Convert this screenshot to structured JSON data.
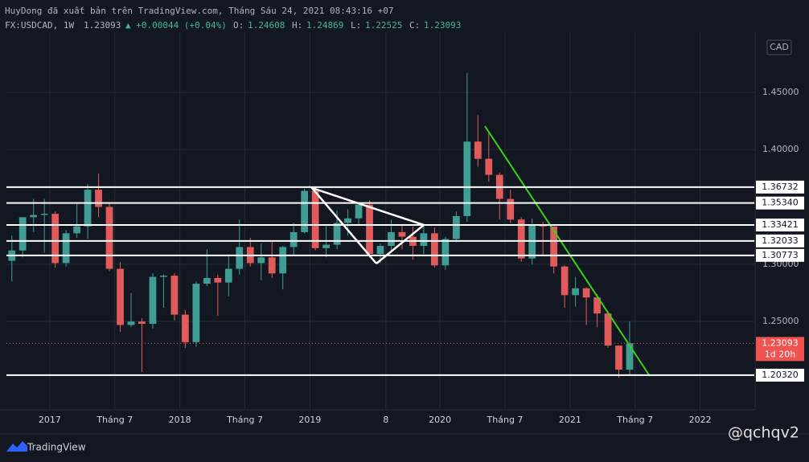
{
  "header": {
    "title": "HuyDong đã xuất bản trên TradingView.com, Tháng Sáu 24, 2021 08:43:16 +07",
    "symbol": "FX:USDCAD, 1W",
    "last": "1.23093",
    "change": "▲ +0.00044 (+0.04%)",
    "ohlc": [
      {
        "label": "O:",
        "value": "1.24608"
      },
      {
        "label": "H:",
        "value": "1.24869"
      },
      {
        "label": "L:",
        "value": "1.22525"
      },
      {
        "label": "C:",
        "value": "1.23093"
      }
    ]
  },
  "brand": "TradingView",
  "watermark": "@qchqv2",
  "chart_data": {
    "type": "candlestick",
    "currency": "CAD",
    "x": [
      "2016-09",
      "2016-10",
      "2016-11",
      "2016-12",
      "2017-01",
      "2017-02",
      "2017-03",
      "2017-04",
      "2017-05",
      "2017-06",
      "2017-07",
      "2017-08",
      "2017-09",
      "2017-10",
      "2017-11",
      "2017-12",
      "2018-01",
      "2018-02",
      "2018-03",
      "2018-04",
      "2018-05",
      "2018-06",
      "2018-07",
      "2018-08",
      "2018-09",
      "2018-10",
      "2018-11",
      "2018-12",
      "2019-01",
      "2019-02",
      "2019-03",
      "2019-04",
      "2019-05",
      "2019-06",
      "2019-07",
      "2019-08",
      "2019-09",
      "2019-10",
      "2019-11",
      "2019-12",
      "2020-01",
      "2020-02",
      "2020-03",
      "2020-04",
      "2020-05",
      "2020-06",
      "2020-07",
      "2020-08",
      "2020-09",
      "2020-10",
      "2020-11",
      "2020-12",
      "2021-01",
      "2021-02",
      "2021-03",
      "2021-04",
      "2021-05",
      "2021-06"
    ],
    "open": [
      1.303,
      1.312,
      1.341,
      1.343,
      1.344,
      1.301,
      1.327,
      1.333,
      1.365,
      1.35,
      1.296,
      1.247,
      1.25,
      1.248,
      1.289,
      1.29,
      1.256,
      1.232,
      1.283,
      1.288,
      1.284,
      1.296,
      1.315,
      1.301,
      1.306,
      1.292,
      1.315,
      1.328,
      1.364,
      1.314,
      1.317,
      1.336,
      1.34,
      1.352,
      1.309,
      1.316,
      1.328,
      1.324,
      1.316,
      1.327,
      1.299,
      1.322,
      1.342,
      1.407,
      1.392,
      1.378,
      1.357,
      1.339,
      1.305,
      1.334,
      1.333,
      1.298,
      1.273,
      1.279,
      1.271,
      1.257,
      1.229,
      1.208
    ],
    "high": [
      1.325,
      1.341,
      1.357,
      1.357,
      1.346,
      1.33,
      1.354,
      1.37,
      1.379,
      1.353,
      1.302,
      1.275,
      1.253,
      1.292,
      1.291,
      1.292,
      1.26,
      1.285,
      1.313,
      1.291,
      1.307,
      1.339,
      1.323,
      1.318,
      1.32,
      1.316,
      1.336,
      1.366,
      1.368,
      1.335,
      1.347,
      1.348,
      1.352,
      1.356,
      1.318,
      1.339,
      1.334,
      1.333,
      1.334,
      1.332,
      1.324,
      1.346,
      1.467,
      1.43,
      1.415,
      1.38,
      1.365,
      1.341,
      1.34,
      1.337,
      1.333,
      1.299,
      1.289,
      1.28,
      1.274,
      1.257,
      1.229,
      1.25
    ],
    "low": [
      1.285,
      1.306,
      1.328,
      1.31,
      1.297,
      1.298,
      1.323,
      1.322,
      1.341,
      1.294,
      1.241,
      1.245,
      1.206,
      1.244,
      1.262,
      1.251,
      1.227,
      1.228,
      1.281,
      1.255,
      1.272,
      1.291,
      1.298,
      1.286,
      1.288,
      1.278,
      1.307,
      1.327,
      1.312,
      1.306,
      1.313,
      1.325,
      1.334,
      1.306,
      1.301,
      1.311,
      1.313,
      1.304,
      1.309,
      1.297,
      1.295,
      1.319,
      1.337,
      1.385,
      1.372,
      1.339,
      1.336,
      1.302,
      1.3,
      1.308,
      1.292,
      1.262,
      1.263,
      1.247,
      1.245,
      1.227,
      1.201,
      1.204
    ],
    "close": [
      1.312,
      1.341,
      1.343,
      1.344,
      1.301,
      1.327,
      1.333,
      1.365,
      1.35,
      1.296,
      1.247,
      1.25,
      1.248,
      1.289,
      1.29,
      1.256,
      1.232,
      1.283,
      1.288,
      1.284,
      1.296,
      1.315,
      1.301,
      1.306,
      1.292,
      1.315,
      1.328,
      1.364,
      1.314,
      1.317,
      1.336,
      1.34,
      1.352,
      1.309,
      1.316,
      1.328,
      1.324,
      1.316,
      1.327,
      1.299,
      1.322,
      1.342,
      1.407,
      1.392,
      1.378,
      1.357,
      1.339,
      1.305,
      1.334,
      1.333,
      1.298,
      1.273,
      1.279,
      1.271,
      1.257,
      1.229,
      1.208,
      1.231
    ],
    "up_color": "#3f9d93",
    "down_color": "#e15b5b",
    "xlim": [
      "2016-09",
      "2022-06"
    ],
    "xticks": [
      {
        "value": "2017-01",
        "label": "2017"
      },
      {
        "value": "2017-07",
        "label": "Tháng 7"
      },
      {
        "value": "2018-01",
        "label": "2018"
      },
      {
        "value": "2018-07",
        "label": "Tháng 7"
      },
      {
        "value": "2019-01",
        "label": "2019"
      },
      {
        "value": "2019-08",
        "label": "8"
      },
      {
        "value": "2020-01",
        "label": "2020"
      },
      {
        "value": "2020-07",
        "label": "Tháng 7"
      },
      {
        "value": "2021-01",
        "label": "2021"
      },
      {
        "value": "2021-07",
        "label": "Tháng 7"
      },
      {
        "value": "2022-01",
        "label": "2022"
      }
    ],
    "ylim": [
      1.173,
      1.499
    ],
    "yticks": [
      {
        "value": 1.25,
        "label": "1.25000"
      },
      {
        "value": 1.3,
        "label": "1.30000"
      },
      {
        "value": 1.4,
        "label": "1.40000"
      },
      {
        "value": 1.45,
        "label": "1.45000"
      }
    ],
    "grid": true,
    "levels": [
      1.36732,
      1.3534,
      1.33421,
      1.32033,
      1.30773,
      1.2032
    ],
    "level_labels": [
      "1.36732",
      "1.35340",
      "1.33421",
      "1.32033",
      "1.30773",
      "1.20320"
    ],
    "last_price": {
      "value": 1.23093,
      "label": "1.23093",
      "countdown": "1d 20h"
    }
  }
}
